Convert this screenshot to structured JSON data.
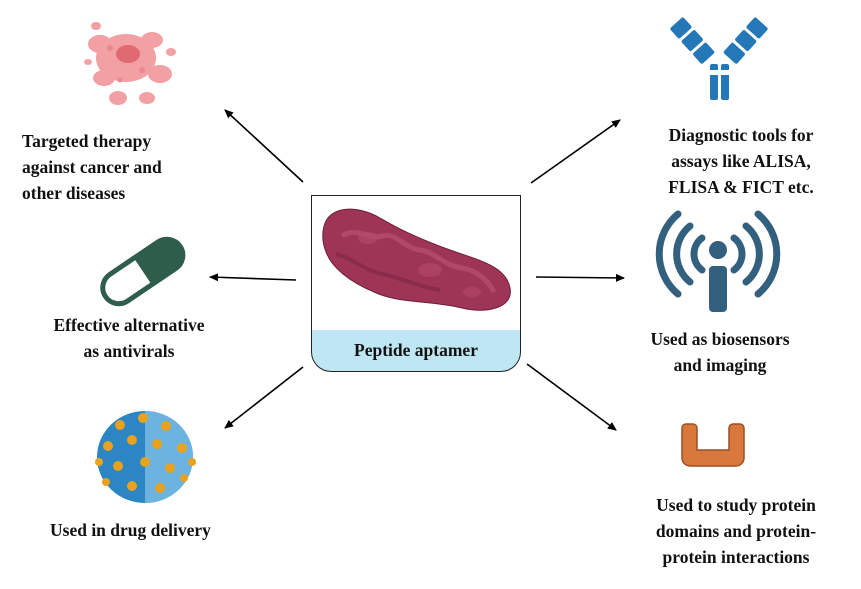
{
  "center": {
    "label": "Peptide aptamer"
  },
  "applications": {
    "targeted_therapy": {
      "lines": [
        "Targeted therapy",
        "against cancer and",
        "other diseases"
      ],
      "icon": "cancer-cell-icon"
    },
    "antivirals": {
      "lines": [
        "Effective alternative",
        "as antivirals"
      ],
      "icon": "capsule-icon"
    },
    "drug_delivery": {
      "lines": [
        "Used in drug delivery"
      ],
      "icon": "nanoparticle-icon"
    },
    "diagnostics": {
      "lines": [
        "Diagnostic tools for",
        "assays like ALISA,",
        "FLISA & FICT etc."
      ],
      "icon": "antibody-icon"
    },
    "biosensors": {
      "lines": [
        "Used as biosensors",
        "and imaging"
      ],
      "icon": "antenna-signal-icon"
    },
    "protein_study": {
      "lines": [
        "Used to study protein",
        "domains and protein-",
        "protein interactions"
      ],
      "icon": "u-shape-domain-icon"
    }
  },
  "colors": {
    "cancer_cell": "#f2a0a3",
    "capsule_dark": "#2f5d4b",
    "nanoparticle_blue": "#2d86c4",
    "nanoparticle_dots": "#e8a21d",
    "antibody_blue": "#2478b8",
    "antenna": "#34607f",
    "u_shape": "#d9783d",
    "peptide": "#9e3556",
    "base_fill": "#bfe7f3"
  }
}
